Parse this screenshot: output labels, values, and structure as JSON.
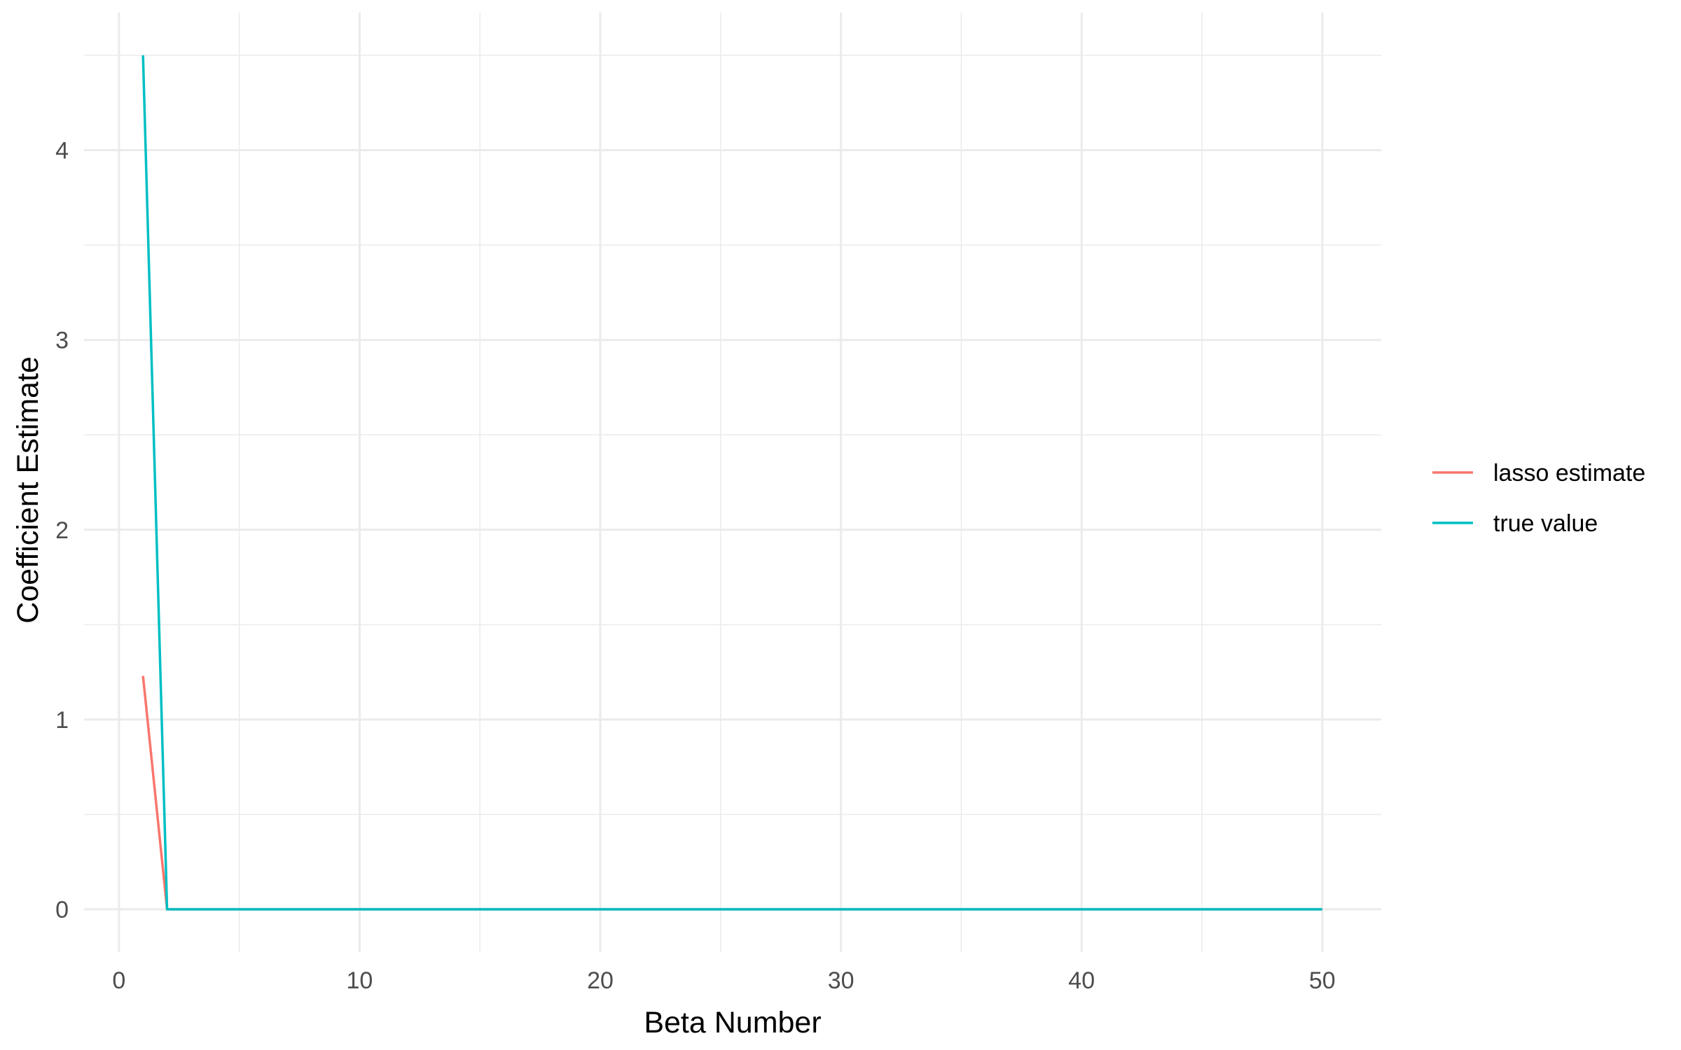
{
  "chart_data": {
    "type": "line",
    "title": "",
    "xlabel": "Beta Number",
    "ylabel": "Coefficient Estimate",
    "xlim": [
      -1.45,
      52.45
    ],
    "ylim": [
      -0.225,
      4.725
    ],
    "x_ticks": [
      0,
      10,
      20,
      30,
      40,
      50
    ],
    "x_tick_labels": [
      "0",
      "10",
      "20",
      "30",
      "40",
      "50"
    ],
    "x_minor_ticks": [
      5,
      15,
      25,
      35,
      45
    ],
    "y_ticks": [
      0,
      1,
      2,
      3,
      4
    ],
    "y_tick_labels": [
      "0",
      "1",
      "2",
      "3",
      "4"
    ],
    "y_minor_ticks": [
      0.5,
      1.5,
      2.5,
      3.5,
      4.5
    ],
    "grid": true,
    "legend_position": "right",
    "series": [
      {
        "name": "lasso estimate",
        "color": "#F8766D",
        "x": [
          1,
          2,
          3,
          4,
          5,
          6,
          7,
          8,
          9,
          10,
          11,
          12,
          13,
          14,
          15,
          16,
          17,
          18,
          19,
          20,
          21,
          22,
          23,
          24,
          25,
          26,
          27,
          28,
          29,
          30,
          31,
          32,
          33,
          34,
          35,
          36,
          37,
          38,
          39,
          40,
          41,
          42,
          43,
          44,
          45,
          46,
          47,
          48,
          49,
          50
        ],
        "values": [
          1.23,
          0,
          0,
          0,
          0,
          0,
          0,
          0,
          0,
          0,
          0,
          0,
          0,
          0,
          0,
          0,
          0,
          0,
          0,
          0,
          0,
          0,
          0,
          0,
          0,
          0,
          0,
          0,
          0,
          0,
          0,
          0,
          0,
          0,
          0,
          0,
          0,
          0,
          0,
          0,
          0,
          0,
          0,
          0,
          0,
          0,
          0,
          0,
          0,
          0
        ]
      },
      {
        "name": "true value",
        "color": "#00BFC4",
        "x": [
          1,
          2,
          3,
          4,
          5,
          6,
          7,
          8,
          9,
          10,
          11,
          12,
          13,
          14,
          15,
          16,
          17,
          18,
          19,
          20,
          21,
          22,
          23,
          24,
          25,
          26,
          27,
          28,
          29,
          30,
          31,
          32,
          33,
          34,
          35,
          36,
          37,
          38,
          39,
          40,
          41,
          42,
          43,
          44,
          45,
          46,
          47,
          48,
          49,
          50
        ],
        "values": [
          4.5,
          0,
          0,
          0,
          0,
          0,
          0,
          0,
          0,
          0,
          0,
          0,
          0,
          0,
          0,
          0,
          0,
          0,
          0,
          0,
          0,
          0,
          0,
          0,
          0,
          0,
          0,
          0,
          0,
          0,
          0,
          0,
          0,
          0,
          0,
          0,
          0,
          0,
          0,
          0,
          0,
          0,
          0,
          0,
          0,
          0,
          0,
          0,
          0,
          0
        ]
      }
    ]
  }
}
